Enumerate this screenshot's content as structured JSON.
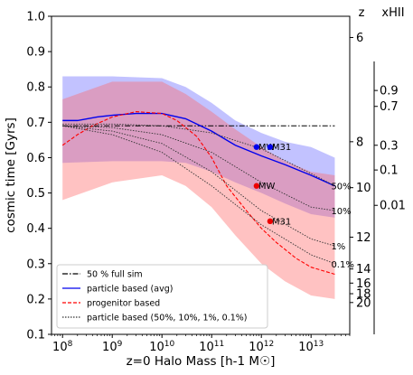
{
  "chart_data": {
    "type": "line",
    "xlabel": "z=0 Halo Mass [h-1 M☉]",
    "ylabel": "cosmic time [Gyrs]",
    "x_scale": "log",
    "xlim": [
      60000000,
      60000000000000
    ],
    "ylim": [
      0.1,
      1.0
    ],
    "x_ticks": [
      {
        "value": 100000000,
        "base": "10",
        "exp": "8"
      },
      {
        "value": 1000000000,
        "base": "10",
        "exp": "9"
      },
      {
        "value": 10000000000,
        "base": "10",
        "exp": "10"
      },
      {
        "value": 100000000000,
        "base": "10",
        "exp": "11"
      },
      {
        "value": 1000000000000,
        "base": "10",
        "exp": "12"
      },
      {
        "value": 10000000000000,
        "base": "10",
        "exp": "13"
      }
    ],
    "y_ticks": [
      "0.1",
      "0.2",
      "0.3",
      "0.4",
      "0.5",
      "0.6",
      "0.7",
      "0.8",
      "0.9",
      "1.0"
    ],
    "right_axis_z": {
      "label": "z",
      "ticks": [
        {
          "label": "6",
          "y": 0.94
        },
        {
          "label": "8",
          "y": 0.645
        },
        {
          "label": "10",
          "y": 0.515
        },
        {
          "label": "12",
          "y": 0.375
        },
        {
          "label": "14",
          "y": 0.285
        },
        {
          "label": "16",
          "y": 0.245
        },
        {
          "label": "18",
          "y": 0.215
        },
        {
          "label": "20",
          "y": 0.19
        }
      ]
    },
    "right_axis_xhii": {
      "label": "xHII",
      "ticks": [
        {
          "label": "0.9",
          "y": 0.79
        },
        {
          "label": "0.7",
          "y": 0.745
        },
        {
          "label": "0.3",
          "y": 0.635
        },
        {
          "label": "0.1",
          "y": 0.565
        },
        {
          "label": "0.01",
          "y": 0.465
        }
      ]
    },
    "series": [
      {
        "name": "50 % full sim",
        "color": "#000000",
        "style": "dashdot",
        "x": [
          100000000,
          30000000000000
        ],
        "y": [
          0.69,
          0.69
        ]
      },
      {
        "name": "particle based (avg)",
        "color": "#0000ee",
        "style": "solid",
        "x": [
          100000000,
          200000000,
          500000000,
          1000000000,
          3000000000,
          10000000000,
          30000000000,
          100000000000,
          300000000000,
          1000000000000,
          3000000000000,
          10000000000000,
          30000000000000
        ],
        "y": [
          0.705,
          0.705,
          0.715,
          0.72,
          0.725,
          0.725,
          0.71,
          0.675,
          0.635,
          0.605,
          0.58,
          0.55,
          0.52
        ]
      },
      {
        "name": "progenitor based",
        "color": "#ff0000",
        "style": "dashed",
        "x": [
          100000000,
          200000000,
          400000000,
          1000000000,
          3000000000,
          10000000000,
          20000000000,
          50000000000,
          100000000000,
          200000000000,
          500000000000,
          1000000000000,
          2000000000000,
          5000000000000,
          10000000000000,
          30000000000000
        ],
        "y": [
          0.635,
          0.665,
          0.69,
          0.715,
          0.73,
          0.725,
          0.705,
          0.66,
          0.6,
          0.52,
          0.45,
          0.4,
          0.36,
          0.315,
          0.29,
          0.27
        ]
      },
      {
        "name": "particle based (50%, 10%, 1%, 0.1%)",
        "color": "#333333",
        "style": "dotted",
        "lines": [
          {
            "label": "50%",
            "x": [
              100000000,
              1000000000,
              10000000000,
              100000000000,
              1000000000000,
              10000000000000,
              30000000000000
            ],
            "y": [
              0.695,
              0.695,
              0.69,
              0.67,
              0.625,
              0.555,
              0.52
            ]
          },
          {
            "label": "10%",
            "x": [
              100000000,
              1000000000,
              10000000000,
              100000000000,
              1000000000000,
              10000000000000,
              30000000000000
            ],
            "y": [
              0.69,
              0.685,
              0.665,
              0.615,
              0.53,
              0.46,
              0.45
            ]
          },
          {
            "label": "1%",
            "x": [
              100000000,
              1000000000,
              10000000000,
              100000000000,
              1000000000000,
              10000000000000,
              30000000000000
            ],
            "y": [
              0.69,
              0.675,
              0.64,
              0.56,
              0.45,
              0.37,
              0.35
            ]
          },
          {
            "label": "0.1%",
            "x": [
              100000000,
              1000000000,
              10000000000,
              100000000000,
              1000000000000,
              10000000000000,
              30000000000000
            ],
            "y": [
              0.69,
              0.665,
              0.615,
              0.52,
              0.41,
              0.325,
              0.3
            ]
          }
        ]
      }
    ],
    "bands": [
      {
        "color": "#6666ff",
        "opacity": 0.4,
        "x": [
          100000000,
          1000000000,
          10000000000,
          30000000000,
          100000000000,
          300000000000,
          1000000000000,
          3000000000000,
          10000000000000,
          30000000000000
        ],
        "y_lo": [
          0.585,
          0.59,
          0.59,
          0.585,
          0.56,
          0.53,
          0.5,
          0.47,
          0.44,
          0.43
        ],
        "y_hi": [
          0.83,
          0.83,
          0.825,
          0.8,
          0.755,
          0.705,
          0.67,
          0.645,
          0.63,
          0.6
        ]
      },
      {
        "color": "#ff6666",
        "opacity": 0.4,
        "x": [
          100000000,
          1000000000,
          10000000000,
          30000000000,
          100000000000,
          300000000000,
          1000000000000,
          3000000000000,
          10000000000000,
          30000000000000
        ],
        "y_lo": [
          0.48,
          0.53,
          0.55,
          0.52,
          0.46,
          0.38,
          0.3,
          0.25,
          0.21,
          0.2
        ],
        "y_hi": [
          0.765,
          0.815,
          0.815,
          0.78,
          0.73,
          0.68,
          0.63,
          0.59,
          0.56,
          0.55
        ]
      }
    ],
    "markers": [
      {
        "label": "MW",
        "color": "#0000ee",
        "x": 800000000000,
        "y": 0.63
      },
      {
        "label": "M31",
        "color": "#0000ee",
        "x": 1500000000000,
        "y": 0.63
      },
      {
        "label": "MW",
        "color": "#ee0000",
        "x": 800000000000,
        "y": 0.52
      },
      {
        "label": "M31",
        "color": "#ee0000",
        "x": 1500000000000,
        "y": 0.42
      }
    ],
    "legend": {
      "placement": "lower-left",
      "entries": [
        {
          "label": "50 % full sim",
          "color": "#000000",
          "style": "dashdot"
        },
        {
          "label": "particle based (avg)",
          "color": "#0000ee",
          "style": "solid"
        },
        {
          "label": "progenitor based",
          "color": "#ff0000",
          "style": "dashed"
        },
        {
          "label": "particle based (50%, 10%, 1%, 0.1%)",
          "color": "#333333",
          "style": "dotted"
        }
      ]
    },
    "grid": false
  }
}
